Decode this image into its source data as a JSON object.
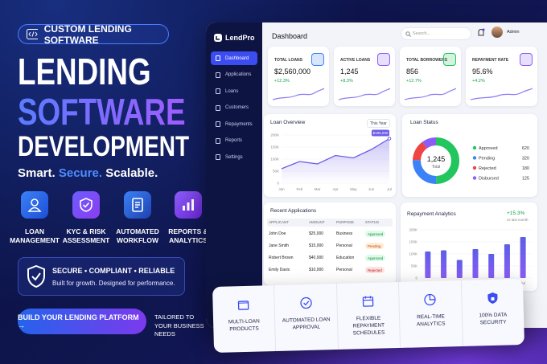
{
  "hero": {
    "badge": "CUSTOM LENDING SOFTWARE",
    "title_lines": [
      "LENDING",
      "SOFTWARE",
      "DEVELOPMENT"
    ],
    "tagline": [
      "Smart.",
      "Secure.",
      "Scalable."
    ],
    "features": [
      "LOAN MANAGEMENT",
      "KYC & RISK ASSESSMENT",
      "AUTOMATED WORKFLOW",
      "REPORTS & ANALYTICS"
    ],
    "trust": {
      "title": "SECURE • COMPLIANT • RELIABLE",
      "subtitle": "Built for growth. Designed for performance."
    },
    "cta": "BUILD YOUR LENDING PLATFORM →",
    "cta_note": "TAILORED TO YOUR BUSINESS NEEDS"
  },
  "dashboard": {
    "brand": "LendPro",
    "menu": [
      "Dashboard",
      "Applications",
      "Loans",
      "Customers",
      "Repayments",
      "Reports",
      "Settings"
    ],
    "title": "Dashboard",
    "search": "Search...",
    "user": "Admin",
    "stats": [
      {
        "label": "TOTAL LOANS",
        "value": "$2,560,000",
        "change": "+12.3%"
      },
      {
        "label": "ACTIVE LOANS",
        "value": "1,245",
        "change": "+8.3%"
      },
      {
        "label": "TOTAL BORROWERS",
        "value": "856",
        "change": "+12.7%"
      },
      {
        "label": "REPAYMENT RATE",
        "value": "95.6%",
        "change": "+4.2%"
      }
    ],
    "loan_overview": {
      "type": "line",
      "title": "Loan Overview",
      "period": "This Year",
      "categories": [
        "Jan",
        "Feb",
        "Mar",
        "Apr",
        "May",
        "Jun",
        "Jul"
      ],
      "values": [
        60000,
        90000,
        80000,
        115000,
        105000,
        140000,
        185000
      ],
      "color": "#6c5ce7",
      "ylim": [
        0,
        200000
      ],
      "yticks": [
        0,
        {
          "value": 50000,
          "label": "50K"
        },
        {
          "value": 100000,
          "label": "100K"
        },
        {
          "value": 150000,
          "label": "150K"
        },
        {
          "value": 200000,
          "label": "200K"
        }
      ],
      "annotation": "$185,000"
    },
    "loan_status": {
      "type": "donut",
      "title": "Loan Status",
      "total_value": "1,245",
      "total_label": "Total",
      "categories": [
        "Approved",
        "Pending",
        "Rejected",
        "Disbursed"
      ],
      "values": [
        620,
        320,
        180,
        125
      ],
      "colors": [
        "#22c55e",
        "#3b82f6",
        "#ef4444",
        "#8b5cf6"
      ]
    },
    "recent_applications": {
      "title": "Recent Applications",
      "columns": [
        "APPLICANT",
        "AMOUNT",
        "PURPOSE",
        "STATUS"
      ],
      "rows": [
        [
          "John Doe",
          "$25,000",
          "Business",
          "Approved"
        ],
        [
          "Jane Smith",
          "$15,000",
          "Personal",
          "Pending"
        ],
        [
          "Robert Brown",
          "$40,000",
          "Education",
          "Approved"
        ],
        [
          "Emily Davis",
          "$10,000",
          "Personal",
          "Rejected"
        ]
      ]
    },
    "repayment": {
      "type": "bar",
      "title": "Repayment Analytics",
      "change": "+15.3%",
      "change_note": "vs last month",
      "categories": [
        "Jan",
        "Feb",
        "Mar",
        "Apr",
        "May",
        "Jun",
        "Jul"
      ],
      "values": [
        110000,
        115000,
        75000,
        120000,
        100000,
        140000,
        170000
      ],
      "color": "#5b5fe6",
      "ylim": [
        0,
        200000
      ],
      "yticks": [
        0,
        {
          "value": 50000,
          "label": "50K"
        },
        {
          "value": 100000,
          "label": "100K"
        },
        {
          "value": 150000,
          "label": "150K"
        },
        {
          "value": 200000,
          "label": "200K"
        }
      ]
    }
  },
  "features_strip": [
    "MULTI-LOAN PRODUCTS",
    "AUTOMATED LOAN APPROVAL",
    "FLEXIBLE REPAYMENT SCHEDULES",
    "REAL-TIME ANALYTICS",
    "100% DATA SECURITY"
  ]
}
